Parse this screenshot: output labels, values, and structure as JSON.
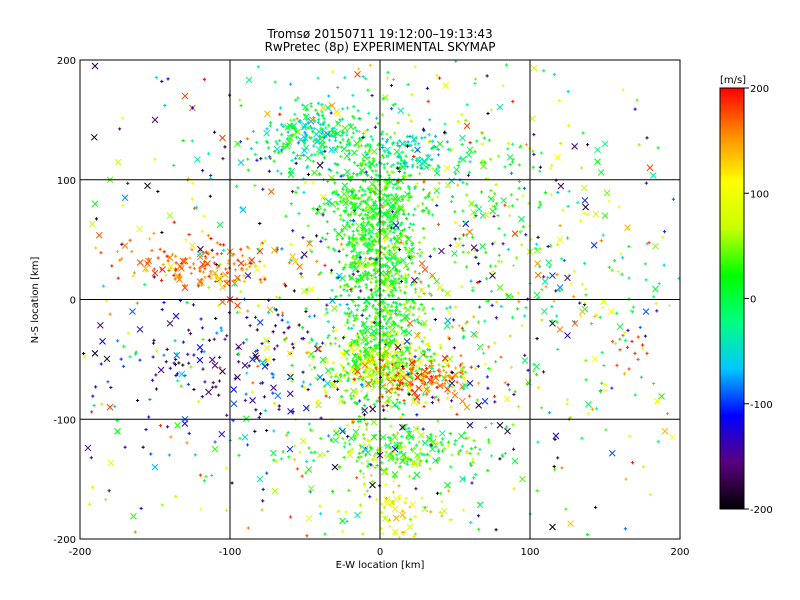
{
  "chart_data": {
    "type": "scatter",
    "title": "Tromsø 20150711 19:12:00–19:13:43",
    "subtitle": "RwPretec (8p) EXPERIMENTAL SKYMAP",
    "xlabel": "E-W location [km]",
    "ylabel": "N-S location [km]",
    "xlim": [
      -200,
      200
    ],
    "ylim": [
      -200,
      200
    ],
    "xticks": [
      "-200",
      "-100",
      "0",
      "100",
      "200"
    ],
    "yticks": [
      "-200",
      "-100",
      "0",
      "100",
      "200"
    ],
    "grid": true,
    "colorbar": {
      "label": "[m/s]",
      "range": [
        -200,
        200
      ],
      "ticks": [
        "200",
        "100",
        "0",
        "-100",
        "-200"
      ],
      "colormap": [
        "#000000",
        "#5a007f",
        "#0000ff",
        "#00c8ff",
        "#00ff7f",
        "#00ff00",
        "#c8ff00",
        "#ffff00",
        "#ff8c00",
        "#ff0000"
      ]
    },
    "markers": [
      "x",
      "+"
    ],
    "points": [
      {
        "x": -190,
        "y": 195,
        "v": -180,
        "m": "x"
      },
      {
        "x": -130,
        "y": 170,
        "v": 180,
        "m": "x"
      },
      {
        "x": -125,
        "y": 160,
        "v": 170,
        "m": "x"
      },
      {
        "x": -150,
        "y": 150,
        "v": -160,
        "m": "x"
      },
      {
        "x": -180,
        "y": 100,
        "v": 40,
        "m": "x"
      },
      {
        "x": -170,
        "y": 85,
        "v": -80,
        "m": "x"
      },
      {
        "x": -190,
        "y": 80,
        "v": 20,
        "m": "x"
      },
      {
        "x": -155,
        "y": 95,
        "v": -190,
        "m": "x"
      },
      {
        "x": -140,
        "y": 70,
        "v": 60,
        "m": "x"
      },
      {
        "x": -125,
        "y": 160,
        "v": -140,
        "m": "+"
      },
      {
        "x": -105,
        "y": 135,
        "v": 180,
        "m": "x"
      },
      {
        "x": -95,
        "y": 130,
        "v": 30,
        "m": "x"
      },
      {
        "x": -75,
        "y": 155,
        "v": 140,
        "m": "x"
      },
      {
        "x": -60,
        "y": 145,
        "v": 10,
        "m": "x"
      },
      {
        "x": -45,
        "y": 150,
        "v": 160,
        "m": "x"
      },
      {
        "x": -38,
        "y": 160,
        "v": 130,
        "m": "x"
      },
      {
        "x": -32,
        "y": 162,
        "v": 150,
        "m": "x"
      },
      {
        "x": -28,
        "y": 155,
        "v": 110,
        "m": "x"
      },
      {
        "x": -55,
        "y": 140,
        "v": 40,
        "m": "x"
      },
      {
        "x": -50,
        "y": 135,
        "v": -40,
        "m": "x"
      },
      {
        "x": -42,
        "y": 132,
        "v": -60,
        "m": "x"
      },
      {
        "x": -35,
        "y": 138,
        "v": -80,
        "m": "x"
      },
      {
        "x": -30,
        "y": 125,
        "v": -20,
        "m": "x"
      },
      {
        "x": -62,
        "y": 128,
        "v": 30,
        "m": "x"
      },
      {
        "x": -48,
        "y": 118,
        "v": 10,
        "m": "x"
      },
      {
        "x": -40,
        "y": 112,
        "v": -180,
        "m": "x"
      },
      {
        "x": -22,
        "y": 120,
        "v": 0,
        "m": "x"
      },
      {
        "x": -15,
        "y": 130,
        "v": 50,
        "m": "x"
      },
      {
        "x": -10,
        "y": 140,
        "v": 80,
        "m": "+"
      },
      {
        "x": 5,
        "y": 125,
        "v": -50,
        "m": "x"
      },
      {
        "x": 15,
        "y": 130,
        "v": -70,
        "m": "x"
      },
      {
        "x": 25,
        "y": 125,
        "v": -90,
        "m": "x"
      },
      {
        "x": 30,
        "y": 115,
        "v": -40,
        "m": "x"
      },
      {
        "x": 40,
        "y": 130,
        "v": 20,
        "m": "x"
      },
      {
        "x": 55,
        "y": 135,
        "v": -30,
        "m": "x"
      },
      {
        "x": 58,
        "y": 145,
        "v": 180,
        "m": "x"
      },
      {
        "x": 60,
        "y": 125,
        "v": 10,
        "m": "x"
      },
      {
        "x": -15,
        "y": 188,
        "v": 180,
        "m": "x"
      },
      {
        "x": 5,
        "y": 185,
        "v": 120,
        "m": "+"
      },
      {
        "x": -100,
        "y": 40,
        "v": 160,
        "m": "x"
      },
      {
        "x": -115,
        "y": 30,
        "v": 180,
        "m": "x"
      },
      {
        "x": -130,
        "y": 32,
        "v": 170,
        "m": "x"
      },
      {
        "x": -145,
        "y": 25,
        "v": 190,
        "m": "x"
      },
      {
        "x": -140,
        "y": 35,
        "v": 160,
        "m": "x"
      },
      {
        "x": -155,
        "y": 30,
        "v": 175,
        "m": "x"
      },
      {
        "x": -150,
        "y": 22,
        "v": 185,
        "m": "x"
      },
      {
        "x": -135,
        "y": 20,
        "v": 150,
        "m": "x"
      },
      {
        "x": -120,
        "y": 15,
        "v": 165,
        "m": "x"
      },
      {
        "x": -110,
        "y": 22,
        "v": 140,
        "m": "x"
      },
      {
        "x": -105,
        "y": 10,
        "v": 130,
        "m": "x"
      },
      {
        "x": -95,
        "y": 18,
        "v": 175,
        "m": "x"
      },
      {
        "x": -88,
        "y": 20,
        "v": -120,
        "m": "x"
      },
      {
        "x": -82,
        "y": 25,
        "v": 110,
        "m": "x"
      },
      {
        "x": -100,
        "y": 0,
        "v": 190,
        "m": "x"
      },
      {
        "x": -95,
        "y": -5,
        "v": 180,
        "m": "x"
      },
      {
        "x": -105,
        "y": -2,
        "v": 170,
        "m": "x"
      },
      {
        "x": -170,
        "y": 45,
        "v": 160,
        "m": "x"
      },
      {
        "x": -175,
        "y": 40,
        "v": 140,
        "m": "+"
      },
      {
        "x": -120,
        "y": 38,
        "v": -60,
        "m": "x"
      },
      {
        "x": -125,
        "y": 45,
        "v": 120,
        "m": "x"
      },
      {
        "x": -165,
        "y": -10,
        "v": -90,
        "m": "x"
      },
      {
        "x": -185,
        "y": -35,
        "v": -120,
        "m": "x"
      },
      {
        "x": -190,
        "y": -45,
        "v": -190,
        "m": "x"
      },
      {
        "x": -160,
        "y": -25,
        "v": -130,
        "m": "x"
      },
      {
        "x": -140,
        "y": -20,
        "v": -170,
        "m": "x"
      },
      {
        "x": -120,
        "y": -40,
        "v": -110,
        "m": "x"
      },
      {
        "x": -110,
        "y": -55,
        "v": -160,
        "m": "x"
      },
      {
        "x": -105,
        "y": -60,
        "v": -180,
        "m": "x"
      },
      {
        "x": -95,
        "y": -65,
        "v": -170,
        "m": "x"
      },
      {
        "x": -90,
        "y": -55,
        "v": -140,
        "m": "x"
      },
      {
        "x": -85,
        "y": -50,
        "v": -100,
        "m": "x"
      },
      {
        "x": -75,
        "y": -50,
        "v": 110,
        "m": "x"
      },
      {
        "x": -60,
        "y": -45,
        "v": 120,
        "m": "x"
      },
      {
        "x": -40,
        "y": -65,
        "v": -80,
        "m": "x"
      },
      {
        "x": -35,
        "y": -70,
        "v": -60,
        "m": "x"
      },
      {
        "x": -15,
        "y": -60,
        "v": 180,
        "m": "x"
      },
      {
        "x": -10,
        "y": -55,
        "v": 160,
        "m": "x"
      },
      {
        "x": -5,
        "y": -50,
        "v": 140,
        "m": "x"
      },
      {
        "x": 0,
        "y": -60,
        "v": 80,
        "m": "x"
      },
      {
        "x": 5,
        "y": -65,
        "v": 60,
        "m": "x"
      },
      {
        "x": 10,
        "y": -55,
        "v": 40,
        "m": "x"
      },
      {
        "x": 15,
        "y": -62,
        "v": 120,
        "m": "x"
      },
      {
        "x": 20,
        "y": -70,
        "v": 170,
        "m": "x"
      },
      {
        "x": 25,
        "y": -65,
        "v": 190,
        "m": "x"
      },
      {
        "x": 30,
        "y": -60,
        "v": 180,
        "m": "x"
      },
      {
        "x": 35,
        "y": -68,
        "v": 160,
        "m": "x"
      },
      {
        "x": 40,
        "y": -72,
        "v": 175,
        "m": "x"
      },
      {
        "x": 45,
        "y": -75,
        "v": 185,
        "m": "x"
      },
      {
        "x": 50,
        "y": -80,
        "v": 170,
        "m": "x"
      },
      {
        "x": 55,
        "y": -85,
        "v": 160,
        "m": "x"
      },
      {
        "x": 58,
        "y": -90,
        "v": 150,
        "m": "x"
      },
      {
        "x": 48,
        "y": -70,
        "v": -150,
        "m": "x"
      },
      {
        "x": 60,
        "y": -70,
        "v": -120,
        "m": "x"
      },
      {
        "x": 70,
        "y": -85,
        "v": -100,
        "m": "x"
      },
      {
        "x": 12,
        "y": -40,
        "v": -160,
        "m": "x"
      },
      {
        "x": 18,
        "y": -35,
        "v": -100,
        "m": "x"
      },
      {
        "x": 20,
        "y": -20,
        "v": 170,
        "m": "x"
      },
      {
        "x": 25,
        "y": -30,
        "v": 150,
        "m": "x"
      },
      {
        "x": 30,
        "y": 25,
        "v": 180,
        "m": "x"
      },
      {
        "x": 35,
        "y": 20,
        "v": 160,
        "m": "x"
      },
      {
        "x": 28,
        "y": 30,
        "v": 170,
        "m": "x"
      },
      {
        "x": 40,
        "y": 10,
        "v": 120,
        "m": "x"
      },
      {
        "x": 45,
        "y": 5,
        "v": 60,
        "m": "x"
      },
      {
        "x": 75,
        "y": 20,
        "v": -190,
        "m": "x"
      },
      {
        "x": 80,
        "y": 10,
        "v": 40,
        "m": "x"
      },
      {
        "x": 110,
        "y": 15,
        "v": -40,
        "m": "x"
      },
      {
        "x": 115,
        "y": 20,
        "v": -100,
        "m": "x"
      },
      {
        "x": 120,
        "y": 10,
        "v": -80,
        "m": "x"
      },
      {
        "x": 125,
        "y": 18,
        "v": -160,
        "m": "x"
      },
      {
        "x": 105,
        "y": 30,
        "v": 150,
        "m": "x"
      },
      {
        "x": 90,
        "y": 55,
        "v": 180,
        "m": "x"
      },
      {
        "x": 100,
        "y": 40,
        "v": 60,
        "m": "x"
      },
      {
        "x": 115,
        "y": -20,
        "v": -180,
        "m": "x"
      },
      {
        "x": 120,
        "y": -25,
        "v": 160,
        "m": "x"
      },
      {
        "x": 130,
        "y": -20,
        "v": 170,
        "m": "x"
      },
      {
        "x": 125,
        "y": -30,
        "v": -130,
        "m": "x"
      },
      {
        "x": 135,
        "y": -10,
        "v": 140,
        "m": "x"
      },
      {
        "x": 145,
        "y": 125,
        "v": -20,
        "m": "x"
      },
      {
        "x": 150,
        "y": 130,
        "v": -20,
        "m": "x"
      },
      {
        "x": 145,
        "y": 115,
        "v": 20,
        "m": "x"
      },
      {
        "x": 180,
        "y": 110,
        "v": 180,
        "m": "x"
      },
      {
        "x": 178,
        "y": 135,
        "v": -180,
        "m": "+"
      },
      {
        "x": 165,
        "y": 60,
        "v": 140,
        "m": "x"
      },
      {
        "x": 150,
        "y": 70,
        "v": 30,
        "m": "x"
      },
      {
        "x": 120,
        "y": 50,
        "v": 100,
        "m": "x"
      },
      {
        "x": -25,
        "y": -110,
        "v": -100,
        "m": "x"
      },
      {
        "x": -20,
        "y": -130,
        "v": 80,
        "m": "x"
      },
      {
        "x": -10,
        "y": -125,
        "v": -60,
        "m": "x"
      },
      {
        "x": 0,
        "y": -130,
        "v": -150,
        "m": "x"
      },
      {
        "x": 10,
        "y": -125,
        "v": -130,
        "m": "x"
      },
      {
        "x": 15,
        "y": -135,
        "v": 20,
        "m": "x"
      },
      {
        "x": 25,
        "y": -130,
        "v": 40,
        "m": "x"
      },
      {
        "x": 30,
        "y": -120,
        "v": -40,
        "m": "x"
      },
      {
        "x": 35,
        "y": -125,
        "v": 0,
        "m": "x"
      },
      {
        "x": -30,
        "y": -140,
        "v": -180,
        "m": "x"
      },
      {
        "x": -40,
        "y": -130,
        "v": 60,
        "m": "x"
      },
      {
        "x": -60,
        "y": -125,
        "v": -100,
        "m": "x"
      },
      {
        "x": -90,
        "y": -115,
        "v": -60,
        "m": "x"
      },
      {
        "x": -110,
        "y": -125,
        "v": 30,
        "m": "x"
      },
      {
        "x": -130,
        "y": -100,
        "v": -90,
        "m": "x"
      },
      {
        "x": -135,
        "y": -105,
        "v": 30,
        "m": "x"
      },
      {
        "x": -180,
        "y": -90,
        "v": 180,
        "m": "x"
      },
      {
        "x": -175,
        "y": -110,
        "v": 20,
        "m": "x"
      },
      {
        "x": -150,
        "y": -140,
        "v": -70,
        "m": "x"
      },
      {
        "x": -80,
        "y": -150,
        "v": -40,
        "m": "x"
      },
      {
        "x": -70,
        "y": -160,
        "v": 60,
        "m": "x"
      },
      {
        "x": -5,
        "y": -155,
        "v": -190,
        "m": "x"
      },
      {
        "x": 5,
        "y": -170,
        "v": 100,
        "m": "x"
      },
      {
        "x": 10,
        "y": -175,
        "v": 120,
        "m": "x"
      },
      {
        "x": 15,
        "y": -180,
        "v": 140,
        "m": "x"
      },
      {
        "x": 20,
        "y": -190,
        "v": 80,
        "m": "x"
      },
      {
        "x": 30,
        "y": -175,
        "v": 60,
        "m": "x"
      },
      {
        "x": -15,
        "y": -180,
        "v": -40,
        "m": "x"
      },
      {
        "x": -25,
        "y": -185,
        "v": 20,
        "m": "x"
      },
      {
        "x": 115,
        "y": -190,
        "v": -200,
        "m": "x"
      },
      {
        "x": 90,
        "y": -135,
        "v": 0,
        "m": "x"
      },
      {
        "x": 95,
        "y": -150,
        "v": 40,
        "m": "x"
      },
      {
        "x": 55,
        "y": -150,
        "v": -20,
        "m": "x"
      },
      {
        "x": 45,
        "y": -155,
        "v": 10,
        "m": "x"
      },
      {
        "x": 60,
        "y": -105,
        "v": -150,
        "m": "x"
      },
      {
        "x": 80,
        "y": -105,
        "v": -190,
        "m": "x"
      },
      {
        "x": 85,
        "y": -110,
        "v": -170,
        "m": "x"
      },
      {
        "x": 165,
        "y": -40,
        "v": 190,
        "m": "+"
      },
      {
        "x": 168,
        "y": -35,
        "v": 195,
        "m": "+"
      },
      {
        "x": 170,
        "y": -45,
        "v": 185,
        "m": "+"
      },
      {
        "x": 160,
        "y": -42,
        "v": 180,
        "m": "+"
      },
      {
        "x": 172,
        "y": -50,
        "v": 175,
        "m": "+"
      },
      {
        "x": 175,
        "y": -38,
        "v": 190,
        "m": "+"
      },
      {
        "x": 158,
        "y": -55,
        "v": 180,
        "m": "+"
      },
      {
        "x": 162,
        "y": -30,
        "v": 170,
        "m": "+"
      },
      {
        "x": 178,
        "y": -45,
        "v": 185,
        "m": "+"
      },
      {
        "x": 166,
        "y": -58,
        "v": 180,
        "m": "+"
      },
      {
        "x": 155,
        "y": -35,
        "v": 175,
        "m": "+"
      },
      {
        "x": 163,
        "y": -62,
        "v": 140,
        "m": "+"
      },
      {
        "x": 185,
        "y": -85,
        "v": 90,
        "m": "x"
      },
      {
        "x": 190,
        "y": -110,
        "v": 140,
        "m": "x"
      },
      {
        "x": 195,
        "y": -115,
        "v": 110,
        "m": "x"
      }
    ],
    "density_clusters": [
      {
        "cx": 0,
        "cy": 15,
        "sx": 15,
        "sy": 60,
        "n": 900,
        "vmin": -20,
        "vmax": 60
      },
      {
        "cx": -5,
        "cy": 80,
        "sx": 18,
        "sy": 25,
        "n": 240,
        "vmin": -10,
        "vmax": 50
      },
      {
        "cx": 0,
        "cy": -55,
        "sx": 20,
        "sy": 15,
        "n": 360,
        "vmin": 10,
        "vmax": 120
      },
      {
        "cx": 30,
        "cy": -65,
        "sx": 18,
        "sy": 10,
        "n": 140,
        "vmin": 140,
        "vmax": 200
      },
      {
        "cx": -40,
        "cy": 140,
        "sx": 18,
        "sy": 14,
        "n": 220,
        "vmin": -80,
        "vmax": 40
      },
      {
        "cx": -120,
        "cy": 28,
        "sx": 25,
        "sy": 10,
        "n": 140,
        "vmin": 130,
        "vmax": 200
      },
      {
        "cx": 10,
        "cy": -125,
        "sx": 35,
        "sy": 10,
        "n": 220,
        "vmin": -20,
        "vmax": 80
      },
      {
        "cx": -100,
        "cy": -55,
        "sx": 40,
        "sy": 25,
        "n": 140,
        "vmin": -200,
        "vmax": -60
      },
      {
        "cx": 25,
        "cy": 120,
        "sx": 15,
        "sy": 12,
        "n": 90,
        "vmin": -80,
        "vmax": 0
      },
      {
        "cx": 70,
        "cy": 90,
        "sx": 25,
        "sy": 30,
        "n": 100,
        "vmin": -10,
        "vmax": 80
      },
      {
        "cx": 0,
        "cy": 0,
        "sx": 110,
        "sy": 110,
        "n": 900,
        "vmin": -200,
        "vmax": 200
      },
      {
        "cx": 10,
        "cy": -175,
        "sx": 20,
        "sy": 15,
        "n": 70,
        "vmin": 40,
        "vmax": 150
      },
      {
        "cx": 130,
        "cy": 0,
        "sx": 50,
        "sy": 60,
        "n": 120,
        "vmin": -50,
        "vmax": 120
      }
    ]
  }
}
